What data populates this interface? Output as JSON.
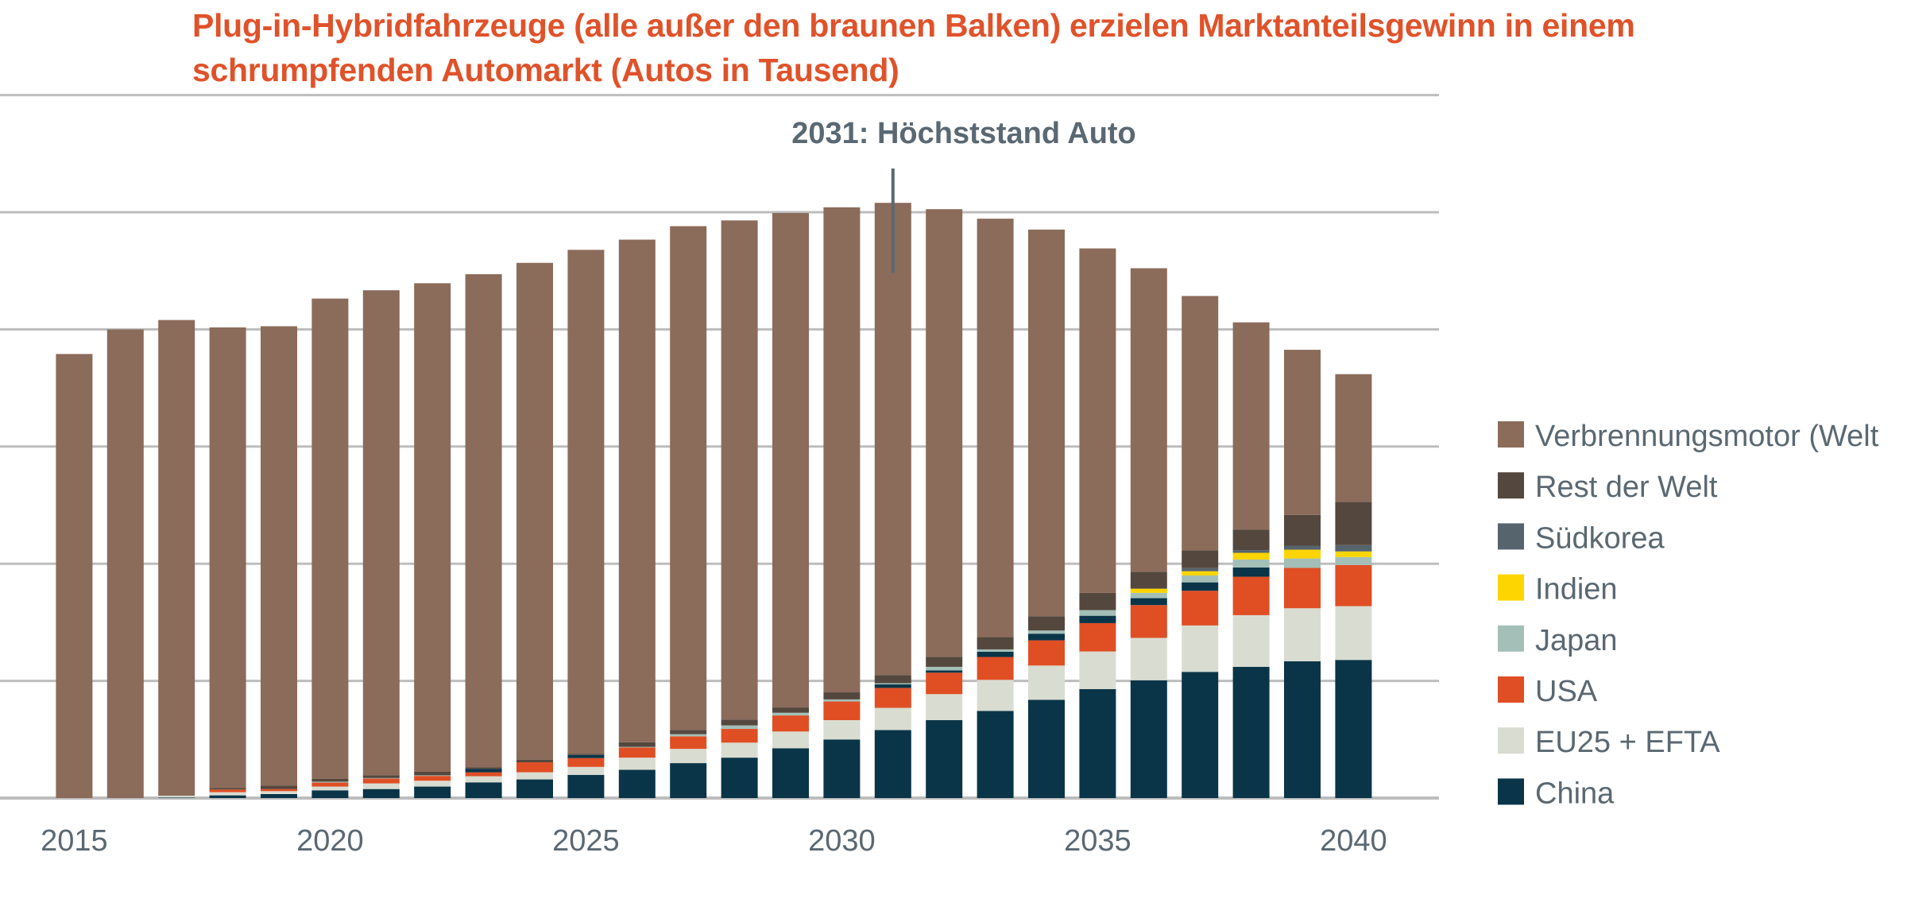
{
  "chart_data": {
    "type": "stacked-bar",
    "title_line1": "Plug-in-Hybridfahrzeuge (alle außer den braunen Balken) erzielen Marktanteilsgewinn in einem",
    "title_line2": "schrumpfenden Automarkt (Autos in Tausend)",
    "annotation": {
      "year": 2031,
      "text": "2031: Höchststand Auto"
    },
    "ylim": [
      0,
      6
    ],
    "grid": true,
    "y_tick_labels_shown": false,
    "legend_position": "right",
    "x_tick_labels": [
      "2015",
      "2020",
      "2025",
      "2030",
      "2035",
      "2040"
    ],
    "categories": [
      2015,
      2016,
      2017,
      2018,
      2019,
      2020,
      2021,
      2022,
      2023,
      2024,
      2025,
      2026,
      2027,
      2028,
      2029,
      2030,
      2031,
      2032,
      2033,
      2034,
      2035,
      2036,
      2037,
      2038,
      2039,
      2040
    ],
    "series": [
      {
        "name": "China",
        "color": "#0a3548",
        "values": [
          0,
          0,
          0.005,
          0.023,
          0.034,
          0.066,
          0.077,
          0.098,
          0.134,
          0.159,
          0.198,
          0.241,
          0.298,
          0.345,
          0.425,
          0.5,
          0.58,
          0.665,
          0.744,
          0.839,
          0.93,
          1.005,
          1.077,
          1.12,
          1.167,
          1.179
        ]
      },
      {
        "name": "EU25 + EFTA",
        "color": "#d9dcd1",
        "values": [
          0,
          0,
          0.015,
          0.027,
          0.025,
          0.032,
          0.048,
          0.05,
          0.052,
          0.061,
          0.068,
          0.104,
          0.122,
          0.128,
          0.143,
          0.165,
          0.19,
          0.222,
          0.265,
          0.292,
          0.321,
          0.362,
          0.396,
          0.441,
          0.453,
          0.459
        ]
      },
      {
        "name": "USA",
        "color": "#e04e24",
        "values": [
          0,
          0,
          0,
          0.023,
          0.018,
          0.034,
          0.041,
          0.041,
          0.034,
          0.085,
          0.075,
          0.087,
          0.107,
          0.117,
          0.137,
          0.159,
          0.17,
          0.183,
          0.195,
          0.215,
          0.242,
          0.28,
          0.296,
          0.328,
          0.344,
          0.351
        ]
      },
      {
        "color": "#0a3548",
        "values": [
          0,
          0,
          0,
          0,
          0,
          0,
          0,
          0,
          0.03,
          0,
          0.027,
          0,
          0,
          0,
          0,
          0,
          0.03,
          0.02,
          0.045,
          0.057,
          0.063,
          0.059,
          0.072,
          0.079,
          0,
          0
        ]
      },
      {
        "name": "Japan",
        "color": "#a3bfb7",
        "values": [
          0,
          0,
          0,
          0,
          0,
          0.008,
          0.005,
          0.005,
          0,
          0,
          0,
          0.005,
          0.018,
          0.03,
          0.023,
          0.018,
          0.01,
          0.03,
          0.02,
          0.027,
          0.048,
          0.045,
          0.059,
          0.068,
          0.081,
          0.068
        ]
      },
      {
        "name": "Indien",
        "color": "#fdd500",
        "values": [
          0,
          0,
          0,
          0,
          0,
          0,
          0,
          0,
          0,
          0,
          0,
          0,
          0,
          0,
          0,
          0,
          0,
          0,
          0,
          0,
          0,
          0.036,
          0.036,
          0.057,
          0.075,
          0.048
        ]
      },
      {
        "name": "Südkorea",
        "color": "#56646e",
        "values": [
          0,
          0,
          0,
          0,
          0,
          0,
          0,
          0,
          0,
          0,
          0,
          0,
          0,
          0,
          0,
          0,
          0,
          0,
          0,
          0,
          0,
          0,
          0.027,
          0.023,
          0.034,
          0.054
        ]
      },
      {
        "name": "Rest der Welt",
        "color": "#54473d",
        "values": [
          0,
          0,
          0,
          0.014,
          0.03,
          0.023,
          0.023,
          0.03,
          0.011,
          0.023,
          0.011,
          0.039,
          0.036,
          0.05,
          0.045,
          0.06,
          0.07,
          0.086,
          0.106,
          0.122,
          0.147,
          0.145,
          0.152,
          0.174,
          0.262,
          0.369
        ]
      },
      {
        "name": "Verbrennungsmotor (Welt",
        "color": "#8b6b5a",
        "values": [
          3.79,
          4.0,
          4.06,
          3.93,
          3.92,
          4.1,
          4.14,
          4.17,
          4.21,
          4.24,
          4.3,
          4.29,
          4.3,
          4.26,
          4.22,
          4.14,
          4.03,
          3.82,
          3.57,
          3.3,
          2.94,
          2.59,
          2.17,
          1.77,
          1.41,
          1.09
        ]
      }
    ],
    "legend": [
      {
        "label": "Verbrennungsmotor (Welt",
        "color": "#8b6b5a"
      },
      {
        "label": "Rest der Welt",
        "color": "#54473d"
      },
      {
        "label": "Südkorea",
        "color": "#56646e"
      },
      {
        "label": "Indien",
        "color": "#fdd500"
      },
      {
        "label": "Japan",
        "color": "#a3bfb7"
      },
      {
        "label": "USA",
        "color": "#e04e24"
      },
      {
        "label": "EU25 + EFTA",
        "color": "#d9dcd1"
      },
      {
        "label": "China",
        "color": "#0a3548"
      }
    ],
    "colors": {
      "title": "#e0522a",
      "text": "#5a6872",
      "grid": "#bdbdbd"
    }
  }
}
